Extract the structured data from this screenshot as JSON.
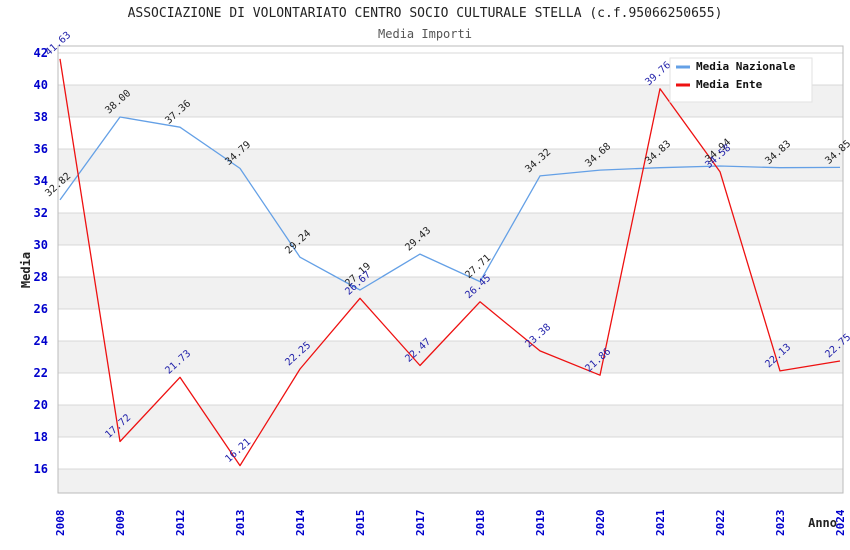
{
  "chart_data": {
    "type": "line",
    "title": "ASSOCIAZIONE DI VOLONTARIATO CENTRO SOCIO CULTURALE STELLA (c.f.95066250655)",
    "subtitle": "Media Importi",
    "xlabel": "Anno",
    "ylabel": "Media",
    "categories": [
      "2008",
      "2009",
      "2012",
      "2013",
      "2014",
      "2015",
      "2017",
      "2018",
      "2019",
      "2020",
      "2021",
      "2022",
      "2023",
      "2024"
    ],
    "series": [
      {
        "name": "Media Nazionale",
        "color": "#64A0E6",
        "label_color": "#222222",
        "values": [
          32.82,
          38.0,
          37.36,
          34.79,
          29.24,
          27.19,
          29.43,
          27.71,
          34.32,
          34.68,
          34.83,
          34.94,
          34.83,
          34.85
        ]
      },
      {
        "name": "Media Ente",
        "color": "#EE1111",
        "label_color": "#2222AA",
        "values": [
          41.63,
          17.72,
          21.73,
          16.21,
          22.25,
          26.67,
          22.47,
          26.45,
          23.38,
          21.86,
          39.76,
          34.58,
          22.13,
          22.75
        ]
      }
    ],
    "ylim": [
      14.5,
      42.44
    ],
    "yticks": [
      16,
      18,
      20,
      22,
      24,
      26,
      28,
      30,
      32,
      34,
      36,
      38,
      40,
      42
    ],
    "grid": true,
    "legend_position": "top-right",
    "colors": {
      "tick_label": "#0000CC",
      "axis_title": "#222222",
      "band": "#F1F1F1",
      "gridline": "#D8D8D8",
      "plot_border": "#BBBBBB",
      "legend_bg": "#FFFFFF",
      "legend_border": "#E2E2E2",
      "legend_text": "#111111"
    }
  }
}
